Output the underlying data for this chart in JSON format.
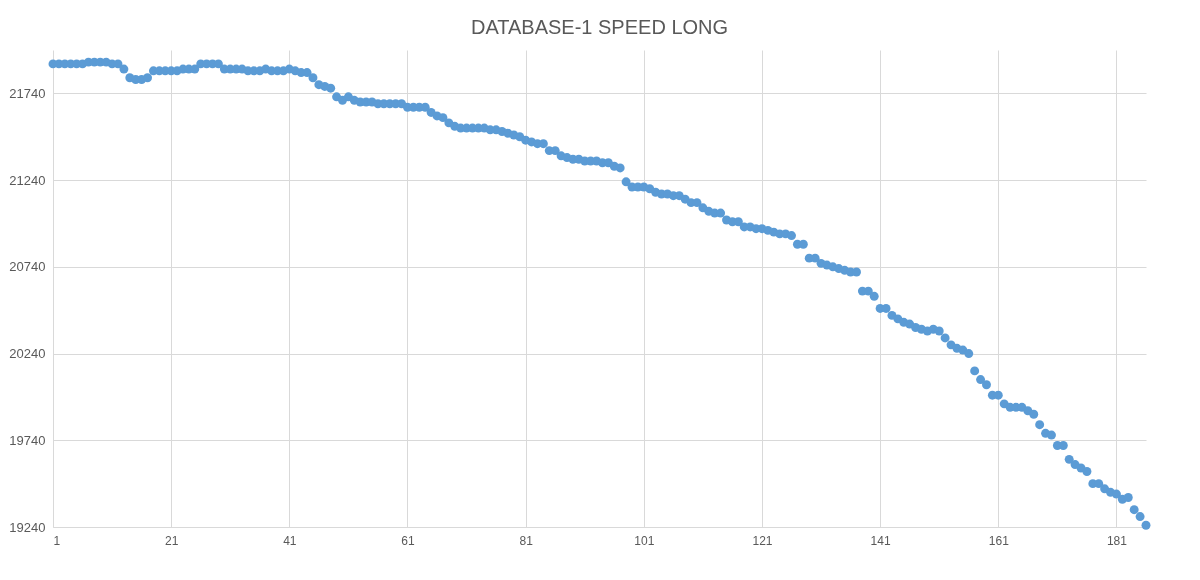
{
  "chart_data": {
    "type": "scatter",
    "title": "DATABASE-1 SPEED LONG",
    "x": [
      1,
      2,
      3,
      4,
      5,
      6,
      7,
      8,
      9,
      10,
      11,
      12,
      13,
      14,
      15,
      16,
      17,
      18,
      19,
      20,
      21,
      22,
      23,
      24,
      25,
      26,
      27,
      28,
      29,
      30,
      31,
      32,
      33,
      34,
      35,
      36,
      37,
      38,
      39,
      40,
      41,
      42,
      43,
      44,
      45,
      46,
      47,
      48,
      49,
      50,
      51,
      52,
      53,
      54,
      55,
      56,
      57,
      58,
      59,
      60,
      61,
      62,
      63,
      64,
      65,
      66,
      67,
      68,
      69,
      70,
      71,
      72,
      73,
      74,
      75,
      76,
      77,
      78,
      79,
      80,
      81,
      82,
      83,
      84,
      85,
      86,
      87,
      88,
      89,
      90,
      91,
      92,
      93,
      94,
      95,
      96,
      97,
      98,
      99,
      100,
      101,
      102,
      103,
      104,
      105,
      106,
      107,
      108,
      109,
      110,
      111,
      112,
      113,
      114,
      115,
      116,
      117,
      118,
      119,
      120,
      121,
      122,
      123,
      124,
      125,
      126,
      127,
      128,
      129,
      130,
      131,
      132,
      133,
      134,
      135,
      136,
      137,
      138,
      139,
      140,
      141,
      142,
      143,
      144,
      145,
      146,
      147,
      148,
      149,
      150,
      151,
      152,
      153,
      154,
      155,
      156,
      157,
      158,
      159,
      160,
      161,
      162,
      163,
      164,
      165,
      166,
      167,
      168,
      169,
      170,
      171,
      172,
      173,
      174,
      175,
      176,
      177,
      178,
      179,
      180,
      181,
      182,
      183,
      184,
      185,
      186
    ],
    "series": [
      {
        "color": "#5b9bd5",
        "values": [
          21910,
          21910,
          21910,
          21910,
          21910,
          21910,
          21920,
          21920,
          21920,
          21920,
          21910,
          21910,
          21880,
          21830,
          21820,
          21820,
          21830,
          21870,
          21870,
          21870,
          21870,
          21870,
          21880,
          21880,
          21880,
          21910,
          21910,
          21910,
          21910,
          21880,
          21880,
          21880,
          21880,
          21870,
          21870,
          21870,
          21880,
          21870,
          21870,
          21870,
          21880,
          21870,
          21860,
          21860,
          21830,
          21790,
          21780,
          21770,
          21720,
          21700,
          21720,
          21700,
          21690,
          21690,
          21690,
          21680,
          21680,
          21680,
          21680,
          21680,
          21660,
          21660,
          21660,
          21660,
          21630,
          21610,
          21600,
          21570,
          21550,
          21540,
          21540,
          21540,
          21540,
          21540,
          21530,
          21530,
          21520,
          21510,
          21500,
          21490,
          21470,
          21460,
          21450,
          21450,
          21410,
          21410,
          21380,
          21370,
          21360,
          21360,
          21350,
          21350,
          21350,
          21340,
          21340,
          21320,
          21310,
          21230,
          21200,
          21200,
          21200,
          21190,
          21170,
          21160,
          21160,
          21150,
          21150,
          21130,
          21110,
          21110,
          21080,
          21060,
          21050,
          21050,
          21010,
          21000,
          21000,
          20970,
          20970,
          20960,
          20960,
          20950,
          20940,
          20930,
          20930,
          20920,
          20870,
          20870,
          20790,
          20790,
          20760,
          20750,
          20740,
          20730,
          20720,
          20710,
          20710,
          20600,
          20600,
          20570,
          20500,
          20500,
          20460,
          20440,
          20420,
          20410,
          20390,
          20380,
          20370,
          20380,
          20370,
          20330,
          20290,
          20270,
          20260,
          20240,
          20140,
          20090,
          20060,
          20000,
          20000,
          19950,
          19930,
          19930,
          19930,
          19910,
          19890,
          19830,
          19780,
          19770,
          19710,
          19710,
          19630,
          19600,
          19580,
          19560,
          19490,
          19490,
          19460,
          19440,
          19430,
          19400,
          19410,
          19340,
          19300,
          19250
        ]
      }
    ],
    "xlim": [
      1,
      186
    ],
    "xticks": [
      1,
      21,
      41,
      61,
      81,
      101,
      121,
      141,
      161,
      181
    ],
    "ylim": [
      19240,
      21990
    ],
    "yticks": [
      19240,
      19740,
      20240,
      20740,
      21240,
      21740
    ],
    "grid": true,
    "marker": "circle"
  }
}
